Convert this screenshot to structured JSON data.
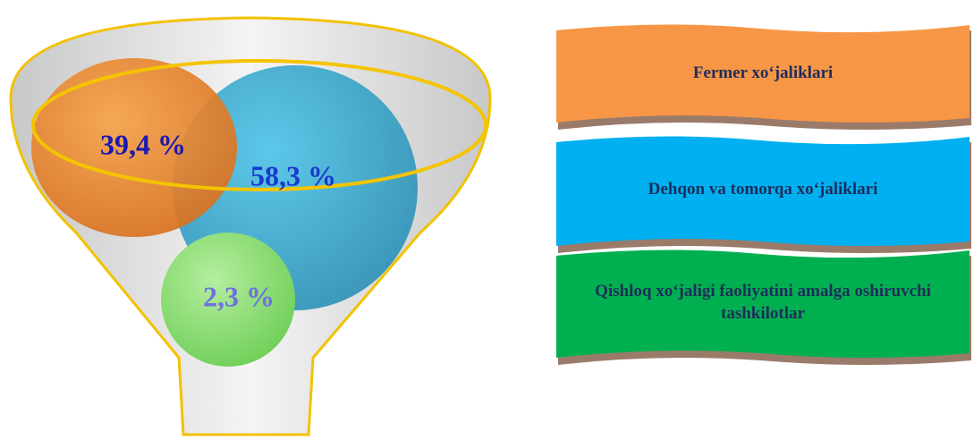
{
  "circles": [
    {
      "label": "39,4 %"
    },
    {
      "label": "58,3 %"
    },
    {
      "label": "2,3 %"
    }
  ],
  "legend": [
    {
      "label": "Fermer xo‘jaliklari"
    },
    {
      "label": "Dehqon va tomorqa xo‘jaliklari"
    },
    {
      "label": "Qishloq xo‘jaligi faoliyatini amalga oshiruvchi tashkilotlar"
    }
  ]
}
